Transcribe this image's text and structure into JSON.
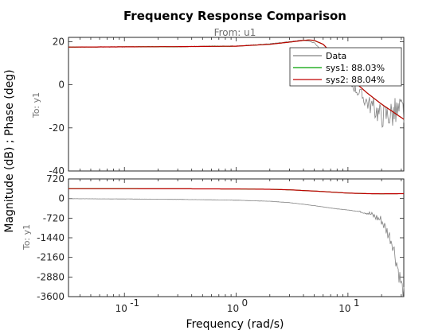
{
  "chart_data": [
    {
      "type": "line",
      "panel": "magnitude",
      "title": "Frequency Response Comparison",
      "subtitle": "From: u1",
      "row_label": "To: y1",
      "ylabel": "Magnitude (dB) ; Phase (deg)",
      "xlabel": "Frequency  (rad/s)",
      "xscale": "log",
      "xlim": [
        0.0316,
        31.6
      ],
      "ylim": [
        -40,
        22
      ],
      "yticks": [
        "20",
        "0",
        "-20",
        "-40"
      ],
      "ytick_values": [
        20,
        0,
        -20,
        -40
      ],
      "legend_position": "top-right",
      "series": [
        {
          "name": "Data",
          "color": "#808080",
          "x": [
            0.0316,
            0.1,
            0.3,
            1.0,
            2.0,
            3.0,
            4.0,
            5.0,
            6.0,
            8.0,
            10.0,
            15.0,
            20.0,
            31.6
          ],
          "y": [
            17.5,
            17.6,
            17.7,
            18.0,
            19.0,
            20.0,
            20.8,
            19.5,
            15.0,
            7.5,
            2.0,
            -8.0,
            -14.0,
            -12.0
          ]
        },
        {
          "name": "sys1: 88.03%",
          "color": "#00a000",
          "x": [
            0.0316,
            0.1,
            0.3,
            1.0,
            2.0,
            3.0,
            4.0,
            4.5,
            5.0,
            6.0,
            8.0,
            10.0,
            15.0,
            20.0,
            31.6
          ],
          "y": [
            17.5,
            17.6,
            17.7,
            17.9,
            18.8,
            19.8,
            20.6,
            20.8,
            20.5,
            18.8,
            12.0,
            4.0,
            -4.0,
            -9.0,
            -16.0
          ]
        },
        {
          "name": "sys2: 88.04%",
          "color": "#c00000",
          "x": [
            0.0316,
            0.1,
            0.3,
            1.0,
            2.0,
            3.0,
            4.0,
            4.5,
            5.0,
            6.0,
            8.0,
            10.0,
            15.0,
            20.0,
            31.6
          ],
          "y": [
            17.5,
            17.6,
            17.7,
            17.9,
            18.8,
            19.8,
            20.6,
            20.8,
            20.6,
            18.8,
            12.0,
            4.0,
            -4.0,
            -9.0,
            -16.0
          ]
        }
      ],
      "legend": [
        "Data",
        "sys1: 88.03%",
        "sys2: 88.04%"
      ]
    },
    {
      "type": "line",
      "panel": "phase",
      "row_label": "To: y1",
      "xscale": "log",
      "xlim": [
        0.0316,
        31.6
      ],
      "ylim": [
        -3600,
        720
      ],
      "xticks": [
        "10",
        "10",
        "10"
      ],
      "xtick_exponents": [
        "-1",
        "0",
        "1"
      ],
      "xtick_values": [
        0.1,
        1,
        10
      ],
      "yticks": [
        "720",
        "0",
        "-720",
        "-1440",
        "-2160",
        "-2880",
        "-3600"
      ],
      "ytick_values": [
        720,
        0,
        -720,
        -1440,
        -2160,
        -2880,
        -3600
      ],
      "series": [
        {
          "name": "Data",
          "color": "#808080",
          "x": [
            0.0316,
            0.1,
            0.3,
            1.0,
            2.0,
            3.0,
            5.0,
            8.0,
            10.0,
            15.0,
            20.0,
            25.0,
            31.6
          ],
          "y": [
            -5,
            -15,
            -30,
            -60,
            -100,
            -150,
            -260,
            -380,
            -420,
            -520,
            -800,
            -1600,
            -3600
          ]
        },
        {
          "name": "sys1: 88.03%",
          "color": "#00a000",
          "x": [
            0.0316,
            0.1,
            0.3,
            1.0,
            2.0,
            3.0,
            5.0,
            8.0,
            10.0,
            15.0,
            20.0,
            31.6
          ],
          "y": [
            360,
            360,
            358,
            352,
            340,
            320,
            275,
            225,
            200,
            180,
            175,
            180
          ]
        },
        {
          "name": "sys2: 88.04%",
          "color": "#c00000",
          "x": [
            0.0316,
            0.1,
            0.3,
            1.0,
            2.0,
            3.0,
            5.0,
            8.0,
            10.0,
            15.0,
            20.0,
            31.6
          ],
          "y": [
            360,
            360,
            358,
            352,
            340,
            320,
            275,
            225,
            200,
            180,
            175,
            180
          ]
        }
      ]
    }
  ]
}
